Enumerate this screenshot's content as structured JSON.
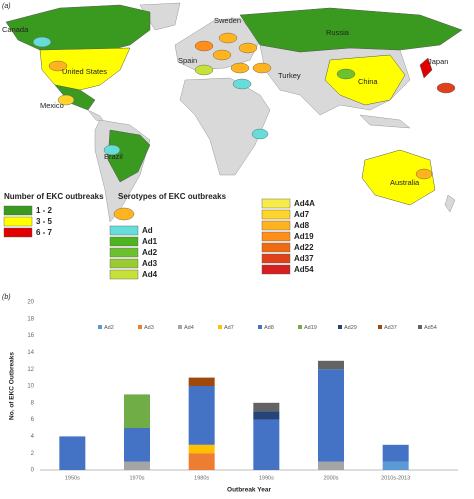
{
  "map": {
    "panel_label": "(a)",
    "country_labels": [
      "Canada",
      "Sweden",
      "Russia",
      "United States",
      "Spain",
      "Turkey",
      "China",
      "Japan",
      "Mexico",
      "Brazil",
      "Australia"
    ],
    "outbreak_legend": {
      "title": "Number of EKC outbreaks",
      "entries": [
        {
          "label": "1 - 2",
          "color": "#3a9a1f"
        },
        {
          "label": "3 - 5",
          "color": "#ffff00"
        },
        {
          "label": "6 - 7",
          "color": "#e00000"
        }
      ]
    },
    "serotype_legend": {
      "title": "Serotypes of EKC outbreaks",
      "entries": [
        {
          "label": "Ad",
          "color": "#66ddd8"
        },
        {
          "label": "Ad1",
          "color": "#4db31f"
        },
        {
          "label": "Ad2",
          "color": "#6cc12f"
        },
        {
          "label": "Ad3",
          "color": "#99cc33"
        },
        {
          "label": "Ad4",
          "color": "#c8e03a"
        },
        {
          "label": "Ad4A",
          "color": "#f5ec4a"
        },
        {
          "label": "Ad7",
          "color": "#ffd52a"
        },
        {
          "label": "Ad8",
          "color": "#ffb31f"
        },
        {
          "label": "Ad19",
          "color": "#ff8f1a"
        },
        {
          "label": "Ad22",
          "color": "#f06a12"
        },
        {
          "label": "Ad37",
          "color": "#e0401a"
        },
        {
          "label": "Ad54",
          "color": "#d81f1f"
        }
      ]
    }
  },
  "chart_data": {
    "type": "stacked_bar",
    "panel_label": "(b)",
    "x_label": "Outbreak Year",
    "y_label": "No. of EKC Outbreaks",
    "categories": [
      "1950s",
      "1970s",
      "1980s",
      "1990s",
      "2000s",
      "2010s-2013"
    ],
    "series": [
      {
        "name": "Ad2",
        "color": "#5b9bd5",
        "values": [
          0,
          0,
          0,
          0,
          0,
          1
        ]
      },
      {
        "name": "Ad3",
        "color": "#ed7d31",
        "values": [
          0,
          0,
          2,
          0,
          0,
          0
        ]
      },
      {
        "name": "Ad4",
        "color": "#a5a5a5",
        "values": [
          0,
          1,
          0,
          0,
          1,
          0
        ]
      },
      {
        "name": "Ad7",
        "color": "#ffc000",
        "values": [
          0,
          0,
          1,
          0,
          0,
          0
        ]
      },
      {
        "name": "Ad8",
        "color": "#4472c4",
        "values": [
          4,
          4,
          7,
          6,
          11,
          2
        ]
      },
      {
        "name": "Ad19",
        "color": "#70ad47",
        "values": [
          0,
          4,
          0,
          0,
          0,
          0
        ]
      },
      {
        "name": "Ad29",
        "color": "#264478",
        "values": [
          0,
          0,
          0,
          1,
          0,
          0
        ]
      },
      {
        "name": "Ad37",
        "color": "#9e480e",
        "values": [
          0,
          0,
          1,
          0,
          0,
          0
        ]
      },
      {
        "name": "Ad54",
        "color": "#636363",
        "values": [
          0,
          0,
          0,
          1,
          1,
          0
        ]
      }
    ],
    "ylim": [
      0,
      20
    ],
    "yticks": [
      0,
      2,
      4,
      6,
      8,
      10,
      12,
      14,
      16,
      18,
      20
    ],
    "grid": false
  }
}
